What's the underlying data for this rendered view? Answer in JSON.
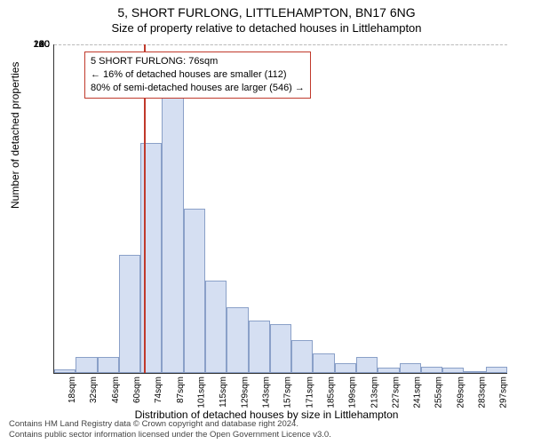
{
  "title_line1": "5, SHORT FURLONG, LITTLEHAMPTON, BN17 6NG",
  "title_line2": "Size of property relative to detached houses in Littlehampton",
  "y_axis_title": "Number of detached properties",
  "x_axis_title": "Distribution of detached houses by size in Littlehampton",
  "infobox": {
    "line1": "5 SHORT FURLONG: 76sqm",
    "line2": "← 16% of detached houses are smaller (112)",
    "line3": "80% of semi-detached houses are larger (546) →"
  },
  "footer_line1": "Contains HM Land Registry data © Crown copyright and database right 2024.",
  "footer_line2": "Contains public sector information licensed under the Open Government Licence v3.0.",
  "chart": {
    "type": "histogram",
    "ylim": [
      0,
      200
    ],
    "ytick_step": 20,
    "x_start": 18,
    "x_bin_width": 14,
    "x_bins": 21,
    "bar_fill": "#d5dff2",
    "bar_border": "#8aa0c8",
    "grid_color": "#bbbbbb",
    "marker_color": "#c0392b",
    "marker_x_value": 76,
    "values": [
      2,
      10,
      10,
      72,
      140,
      168,
      100,
      56,
      40,
      32,
      30,
      20,
      12,
      6,
      10,
      3,
      6,
      4,
      3,
      0,
      4
    ],
    "x_labels": [
      "18sqm",
      "32sqm",
      "46sqm",
      "60sqm",
      "74sqm",
      "87sqm",
      "101sqm",
      "115sqm",
      "129sqm",
      "143sqm",
      "157sqm",
      "171sqm",
      "185sqm",
      "199sqm",
      "213sqm",
      "227sqm",
      "241sqm",
      "255sqm",
      "269sqm",
      "283sqm",
      "297sqm"
    ]
  }
}
